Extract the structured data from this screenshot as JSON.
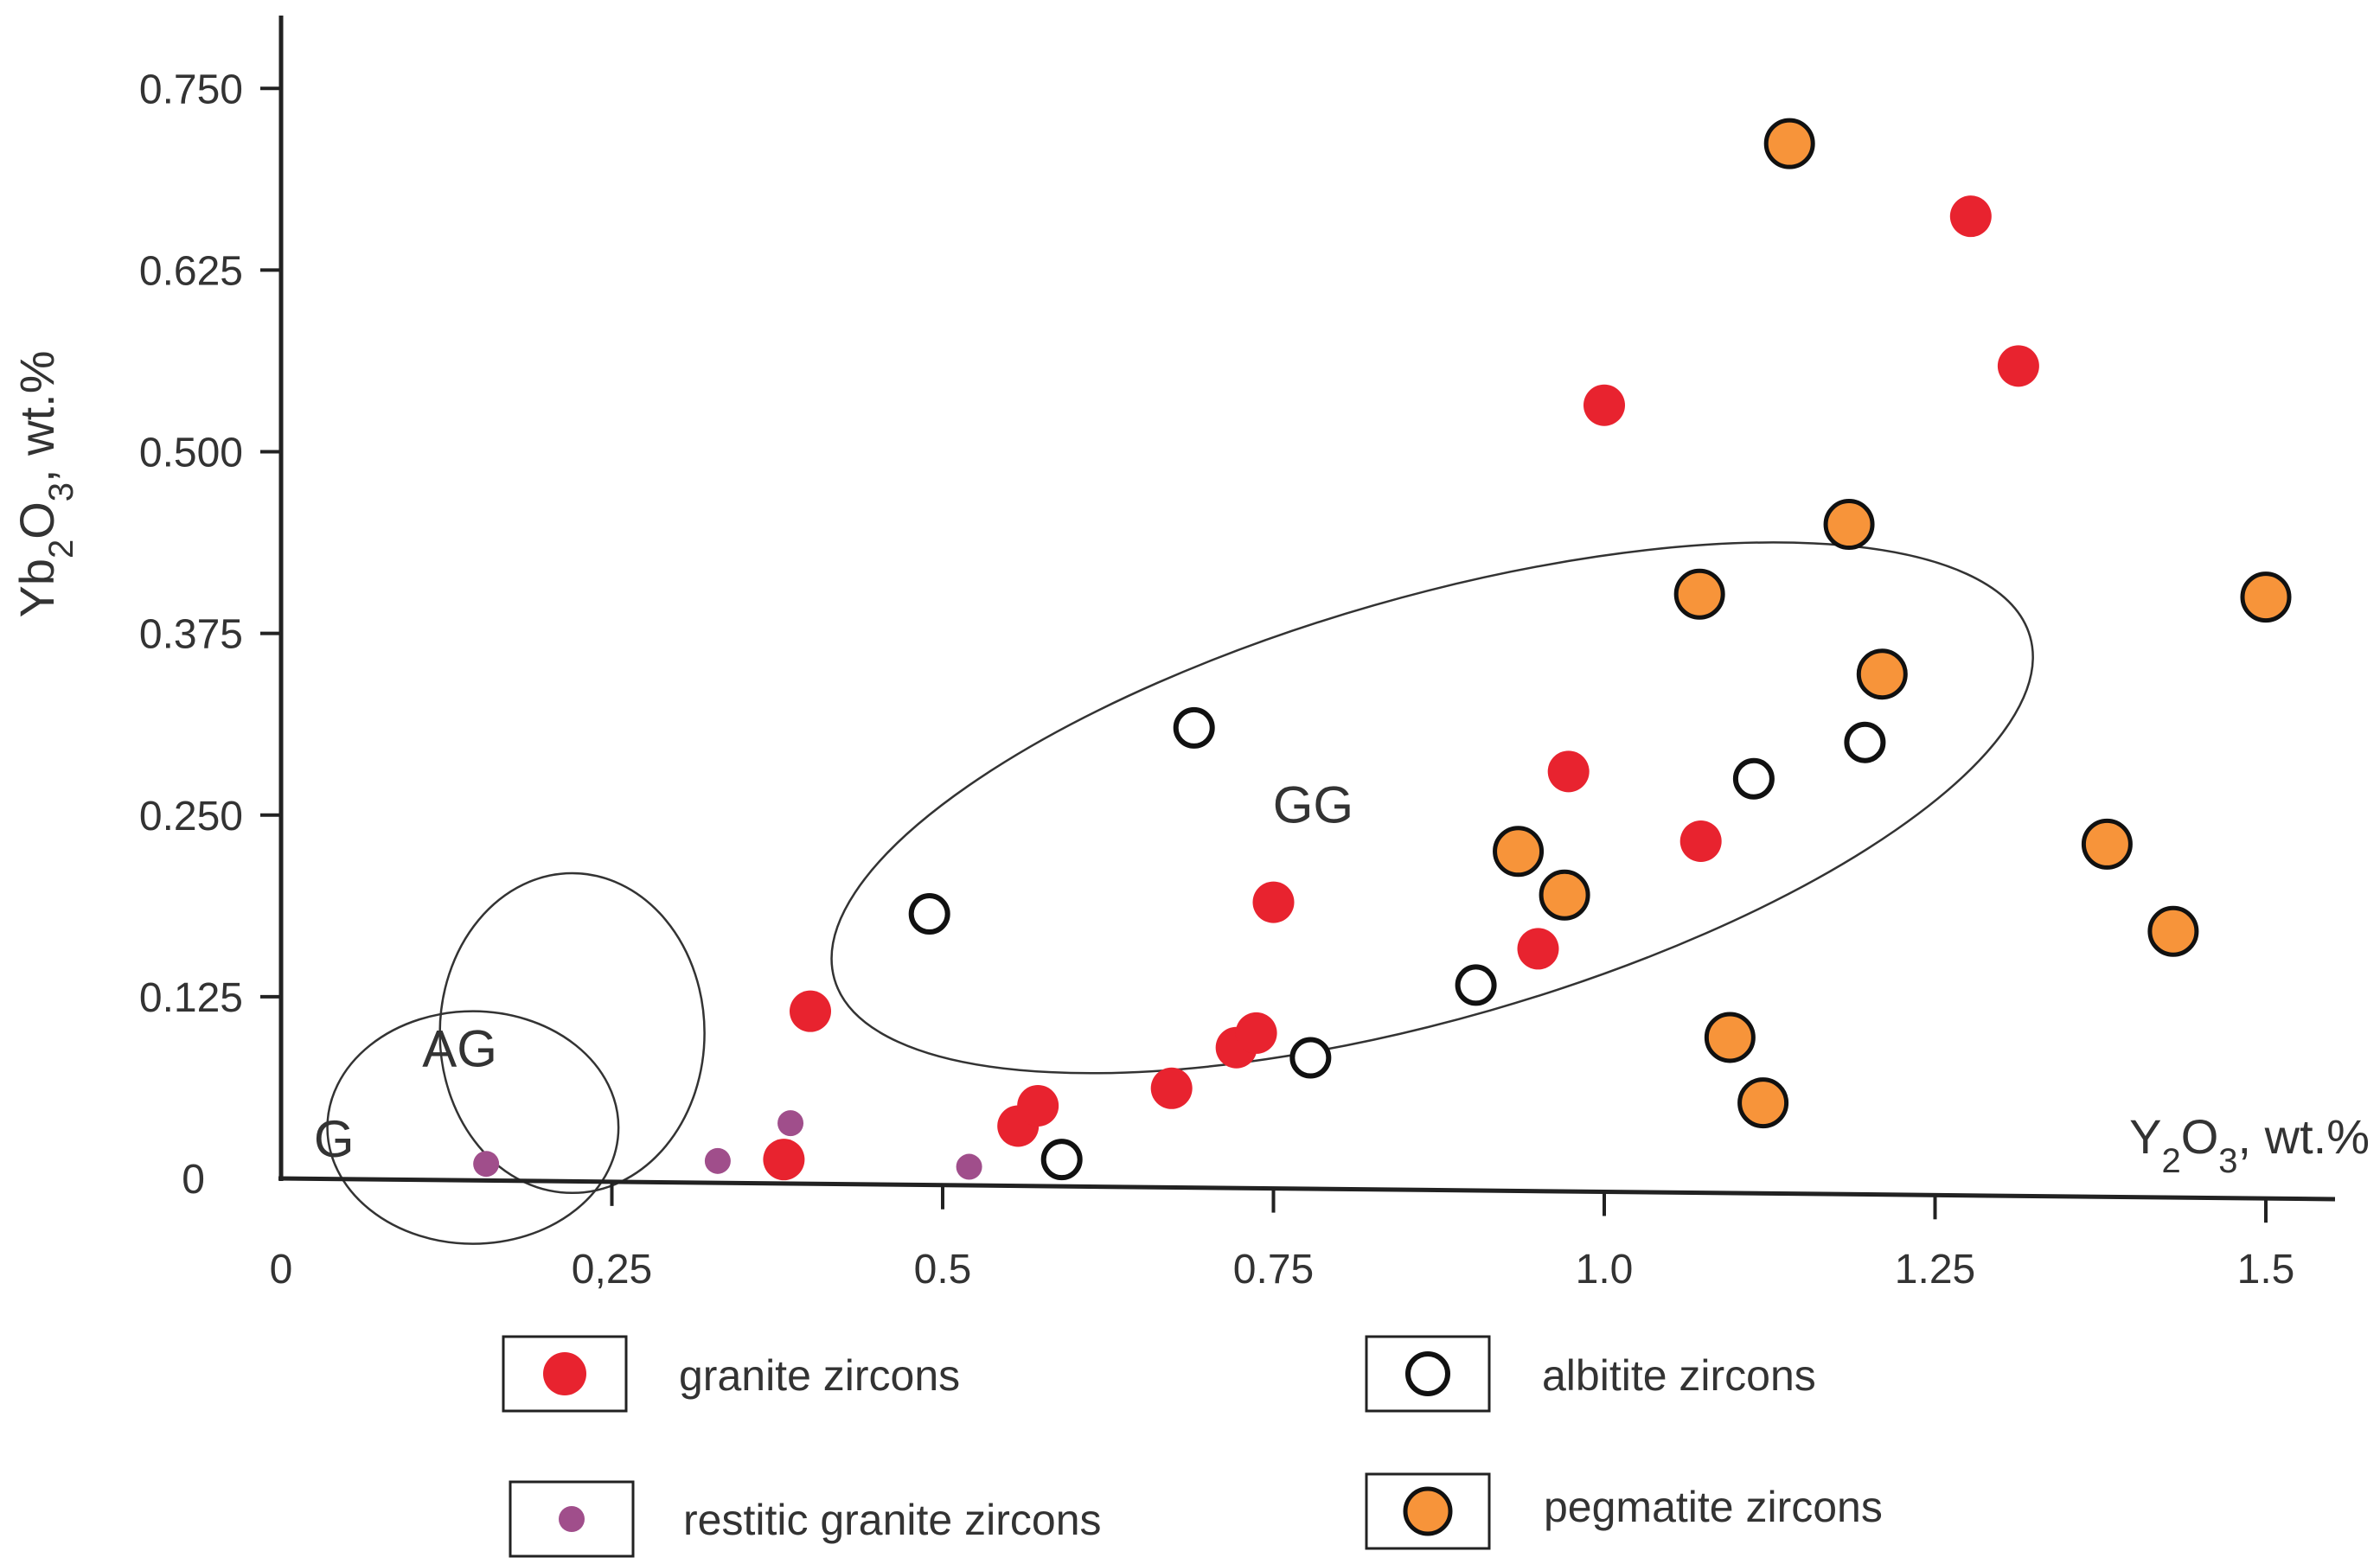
{
  "chart_data": {
    "type": "scatter",
    "title": "",
    "ylabel": "Yb2O3, wt.%",
    "xlabel": "Y2O3, wt.%",
    "xlim": [
      0,
      1.55
    ],
    "ylim": [
      0,
      0.78
    ],
    "x_ticks": [
      {
        "value": 0,
        "label": "0"
      },
      {
        "value": 0.25,
        "label": "0,25"
      },
      {
        "value": 0.5,
        "label": "0.5"
      },
      {
        "value": 0.75,
        "label": "0.75"
      },
      {
        "value": 1.0,
        "label": "1.0"
      },
      {
        "value": 1.25,
        "label": "1.25"
      },
      {
        "value": 1.5,
        "label": "1.5"
      }
    ],
    "y_ticks": [
      {
        "value": 0,
        "label": "0"
      },
      {
        "value": 0.125,
        "label": "0.125"
      },
      {
        "value": 0.25,
        "label": "0.250"
      },
      {
        "value": 0.375,
        "label": "0.375"
      },
      {
        "value": 0.5,
        "label": "0.500"
      },
      {
        "value": 0.625,
        "label": "0.625"
      },
      {
        "value": 0.75,
        "label": "0.750"
      }
    ],
    "regions": [
      {
        "label": "G",
        "cx": 0.145,
        "cy": 0.035,
        "rx": 0.11,
        "ry": 0.08,
        "angle": 0
      },
      {
        "label": "AG",
        "cx": 0.22,
        "cy": 0.1,
        "rx": 0.1,
        "ry": 0.11,
        "angle": 0
      },
      {
        "label": "GG",
        "cx": 0.87,
        "cy": 0.255,
        "rx": 0.47,
        "ry": 0.145,
        "angle": 16
      }
    ],
    "series": [
      {
        "name": "granite zircons",
        "marker": "filled-circle",
        "color": "#e8232f",
        "points": [
          [
            0.4,
            0.115
          ],
          [
            0.38,
            0.013
          ],
          [
            0.557,
            0.036
          ],
          [
            0.572,
            0.05
          ],
          [
            0.673,
            0.062
          ],
          [
            0.722,
            0.09
          ],
          [
            0.737,
            0.1
          ],
          [
            0.75,
            0.19
          ],
          [
            0.95,
            0.158
          ],
          [
            0.973,
            0.28
          ],
          [
            1.0,
            0.532
          ],
          [
            1.073,
            0.232
          ],
          [
            1.277,
            0.662
          ],
          [
            1.313,
            0.559
          ]
        ]
      },
      {
        "name": "restitic granite zircons",
        "marker": "small-circle",
        "color": "#a04e8b",
        "points": [
          [
            0.155,
            0.01
          ],
          [
            0.33,
            0.012
          ],
          [
            0.385,
            0.038
          ],
          [
            0.52,
            0.008
          ]
        ]
      },
      {
        "name": "albitite zircons",
        "marker": "open-circle",
        "color": "#111111",
        "points": [
          [
            0.49,
            0.182
          ],
          [
            0.59,
            0.013
          ],
          [
            0.69,
            0.31
          ],
          [
            0.778,
            0.083
          ],
          [
            0.903,
            0.133
          ],
          [
            1.113,
            0.275
          ],
          [
            1.197,
            0.3
          ]
        ]
      },
      {
        "name": "pegmatite zircons",
        "marker": "orange-circle",
        "color": "#f7943a",
        "points": [
          [
            1.14,
            0.712
          ],
          [
            1.185,
            0.45
          ],
          [
            1.072,
            0.402
          ],
          [
            1.21,
            0.347
          ],
          [
            0.935,
            0.225
          ],
          [
            0.97,
            0.195
          ],
          [
            1.095,
            0.097
          ],
          [
            1.12,
            0.052
          ],
          [
            1.38,
            0.23
          ],
          [
            1.43,
            0.17
          ],
          [
            1.5,
            0.4
          ]
        ]
      }
    ]
  }
}
